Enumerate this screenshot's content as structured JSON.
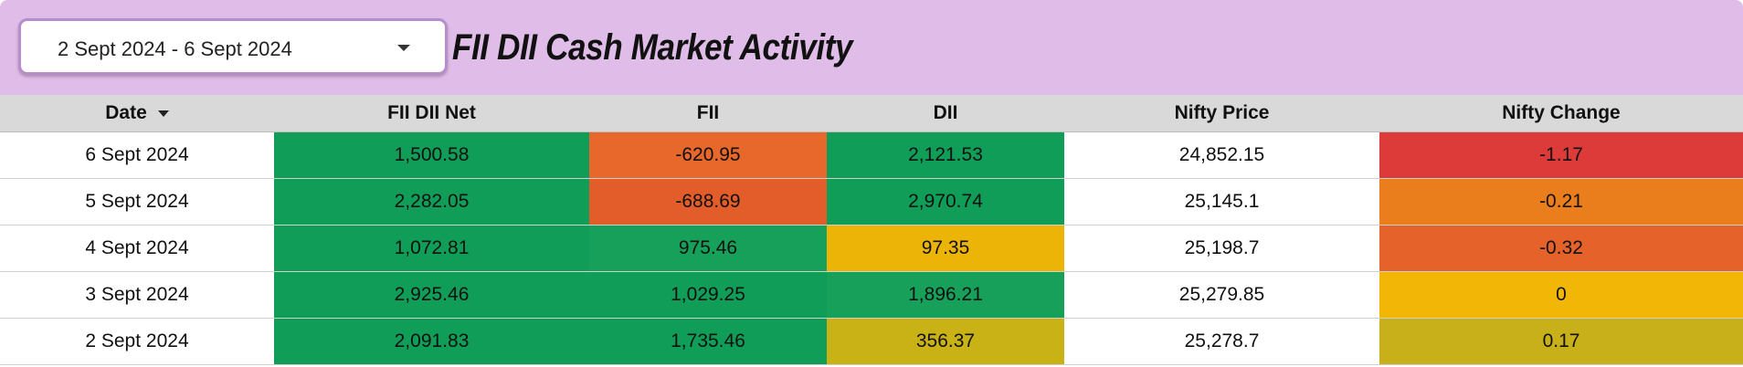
{
  "header": {
    "date_range": "2 Sept 2024 - 6 Sept 2024",
    "title": "FII DII Cash Market Activity"
  },
  "table": {
    "columns": [
      "Date",
      "FII DII Net",
      "FII",
      "DII",
      "Nifty Price",
      "Nifty Change"
    ],
    "rows": [
      {
        "date": "6 Sept 2024",
        "net": "1,500.58",
        "fii": "-620.95",
        "dii": "2,121.53",
        "price": "24,852.15",
        "change": "-1.17"
      },
      {
        "date": "5 Sept 2024",
        "net": "2,282.05",
        "fii": "-688.69",
        "dii": "2,970.74",
        "price": "25,145.1",
        "change": "-0.21"
      },
      {
        "date": "4 Sept 2024",
        "net": "1,072.81",
        "fii": "975.46",
        "dii": "97.35",
        "price": "25,198.7",
        "change": "-0.32"
      },
      {
        "date": "3 Sept 2024",
        "net": "2,925.46",
        "fii": "1,029.25",
        "dii": "1,896.21",
        "price": "25,279.85",
        "change": "0"
      },
      {
        "date": "2 Sept 2024",
        "net": "2,091.83",
        "fii": "1,735.46",
        "dii": "356.37",
        "price": "25,278.7",
        "change": "0.17"
      }
    ],
    "cell_colors": [
      {
        "net": "#0f9d58",
        "fii": "#e8672a",
        "dii": "#0f9d58",
        "price": "#ffffff",
        "change": "#dd3a3a"
      },
      {
        "net": "#0f9d58",
        "fii": "#e35d2a",
        "dii": "#0f9d58",
        "price": "#ffffff",
        "change": "#ea7d1c"
      },
      {
        "net": "#0f9d58",
        "fii": "#16a05a",
        "dii": "#ecb406",
        "price": "#ffffff",
        "change": "#e5632a"
      },
      {
        "net": "#0f9d58",
        "fii": "#0f9d58",
        "dii": "#16a05a",
        "price": "#ffffff",
        "change": "#f1b606"
      },
      {
        "net": "#0f9d58",
        "fii": "#0f9d58",
        "dii": "#c9b216",
        "price": "#ffffff",
        "change": "#c7b01a"
      }
    ]
  }
}
